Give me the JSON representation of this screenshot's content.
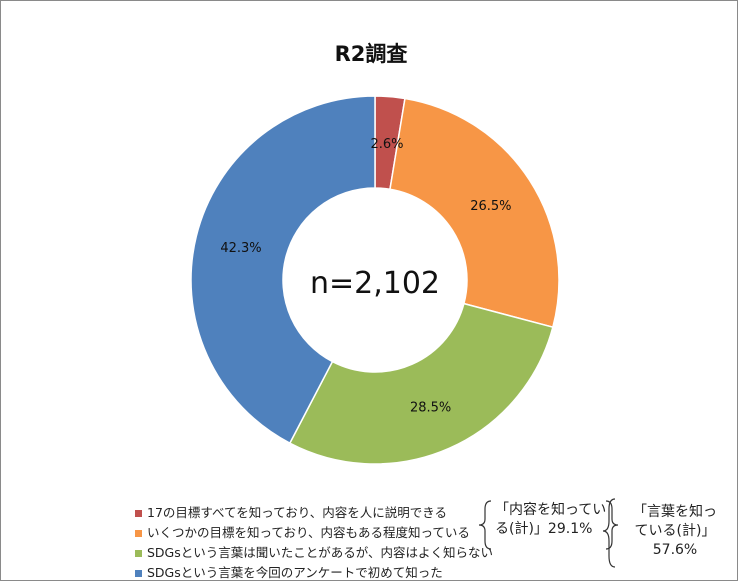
{
  "chart_data": {
    "type": "pie",
    "title": "R2調査",
    "center_label": "n=2,102",
    "categories": [
      "17の目標すべてを知っており、内容を人に説明できる",
      "いくつかの目標を知っており、内容もある程度知っている",
      "SDGsという言葉は聞いたことがあるが、内容はよく知らない",
      "SDGsという言葉を今回のアンケートで初めて知った"
    ],
    "values": [
      2.6,
      26.5,
      28.5,
      42.3
    ],
    "data_labels": [
      "2.6%",
      "26.5%",
      "28.5%",
      "42.3%"
    ],
    "colors": [
      "#C0504D",
      "#F79646",
      "#9BBB59",
      "#4F81BD"
    ],
    "legend_placement": "bottom-left",
    "annotations": {
      "group1": {
        "line1": "「内容を知ってい",
        "line2": "る(計)」29.1%"
      },
      "group2": {
        "line1": "「言葉を知っ",
        "line2": "ている(計)」",
        "line3": "57.6%"
      }
    }
  }
}
